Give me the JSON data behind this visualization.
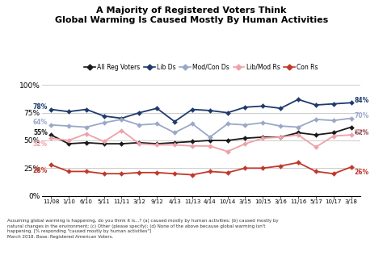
{
  "title_line1": "A Majority of Registered Voters Think",
  "title_line2": "Global Warming Is Caused Mostly By Human Activities",
  "x_labels": [
    "11/08",
    "1/10",
    "6/10",
    "5/11",
    "11/11",
    "3/12",
    "9/12",
    "4/13",
    "11/13",
    "4/14",
    "10/14",
    "3/15",
    "10/15",
    "3/16",
    "11/16",
    "5/17",
    "10/17",
    "3/18"
  ],
  "all_reg": [
    55,
    47,
    48,
    47,
    47,
    48,
    47,
    48,
    49,
    50,
    50,
    52,
    53,
    53,
    57,
    55,
    57,
    62
  ],
  "lib_ds": [
    78,
    76,
    78,
    72,
    70,
    75,
    79,
    67,
    78,
    77,
    75,
    80,
    81,
    79,
    87,
    82,
    83,
    84
  ],
  "mod_con_ds": [
    64,
    63,
    62,
    66,
    69,
    64,
    65,
    57,
    65,
    53,
    65,
    64,
    66,
    63,
    62,
    69,
    68,
    70
  ],
  "lib_mod_rs": [
    52,
    50,
    56,
    49,
    59,
    47,
    46,
    46,
    45,
    45,
    40,
    47,
    52,
    53,
    55,
    44,
    54,
    55
  ],
  "con_rs": [
    28,
    22,
    22,
    20,
    20,
    21,
    21,
    20,
    19,
    22,
    21,
    25,
    25,
    27,
    30,
    22,
    20,
    26
  ],
  "color_all_reg": "#1a1a1a",
  "color_lib_ds": "#1e3a6e",
  "color_mod_con_ds": "#9aa8c8",
  "color_lib_mod_rs": "#f0a0a8",
  "color_con_rs": "#c0392b",
  "footnote_line1": "Assuming global warming is happening, do you think it is...? (a) caused mostly by human activities; (b) caused mostly by",
  "footnote_line2": "natural changes in the environment; (c) Other (please specify); (d) None of the above because global warming isn't",
  "footnote_line3": "happening. [% responding \"caused mostly by human activities\"]",
  "footnote_line4": "March 2018. Base: Registered American Voters.",
  "first_vals": {
    "all_reg": 55,
    "lib_ds": 78,
    "mod_con_ds": 64,
    "lib_mod_rs": 52,
    "con_rs": 28
  },
  "last_vals": {
    "all_reg": 62,
    "lib_ds": 84,
    "mod_con_ds": 70,
    "lib_mod_rs": 55,
    "con_rs": 26
  }
}
